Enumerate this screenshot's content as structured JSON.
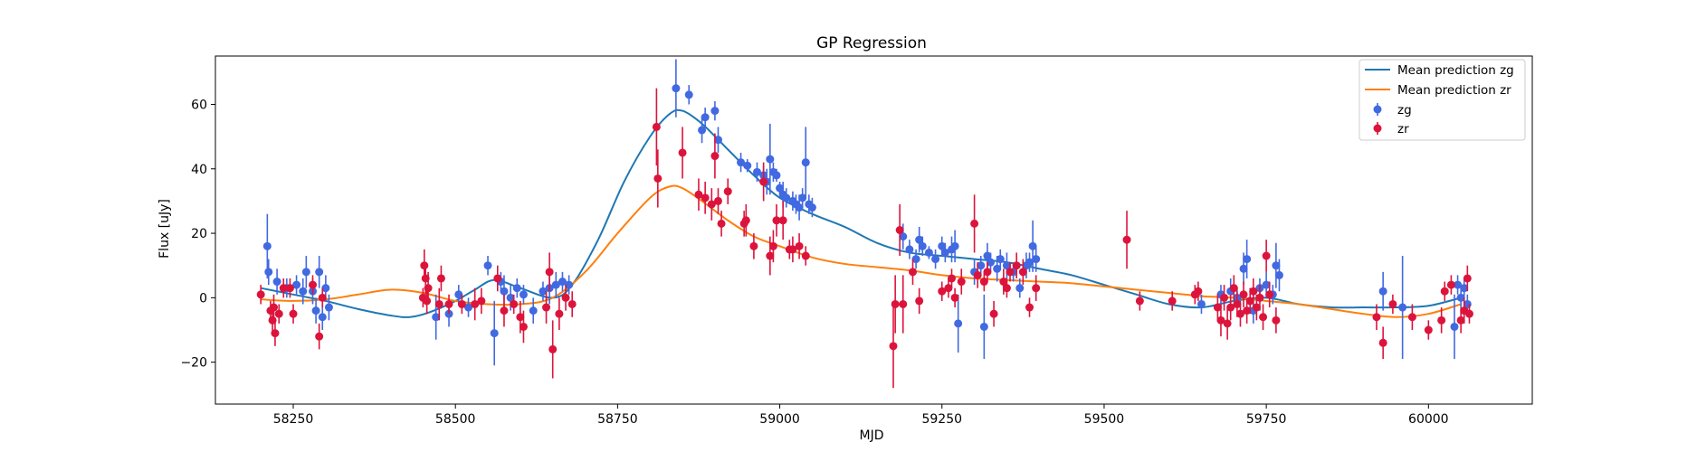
{
  "chart_data": {
    "type": "scatter",
    "title": "GP Regression",
    "xlabel": "MJD",
    "ylabel": "Flux [uJy]",
    "xlim": [
      58130,
      60160
    ],
    "ylim": [
      -33,
      75
    ],
    "xticks": [
      58250,
      58500,
      58750,
      59000,
      59250,
      59500,
      59750,
      60000
    ],
    "yticks": [
      -20,
      0,
      20,
      40,
      60
    ],
    "grid": false,
    "legend": {
      "placement": "top-right",
      "entries": [
        "Mean prediction zg",
        "Mean prediction zr",
        "zg",
        "zr"
      ]
    },
    "colors": {
      "zg_line": "#1f77b4",
      "zr_line": "#ff7f0e",
      "zg_points": "#4169e1",
      "zr_points": "#dc143c"
    },
    "series": [
      {
        "name": "Mean prediction zg",
        "kind": "line",
        "x": [
          58200,
          58250,
          58300,
          58350,
          58400,
          58430,
          58460,
          58500,
          58530,
          58560,
          58600,
          58650,
          58680,
          58720,
          58760,
          58800,
          58830,
          58850,
          58880,
          58920,
          58960,
          59000,
          59050,
          59100,
          59150,
          59200,
          59250,
          59300,
          59350,
          59400,
          59450,
          59500,
          59550,
          59600,
          59650,
          59700,
          59750,
          59800,
          59850,
          59900,
          59950,
          60000,
          60050
        ],
        "y": [
          3,
          1,
          -1,
          -3.5,
          -5.5,
          -6,
          -4.5,
          -1,
          2.5,
          5.5,
          3,
          0,
          4,
          18,
          36,
          50,
          57,
          58,
          54,
          46,
          38,
          31,
          26,
          22,
          17,
          14,
          13,
          12,
          11,
          9,
          7,
          4,
          1,
          -2,
          -3,
          -1,
          0,
          -2,
          -3,
          -3,
          -3,
          -2.5,
          0
        ]
      },
      {
        "name": "Mean prediction zr",
        "kind": "line",
        "x": [
          58200,
          58250,
          58300,
          58350,
          58400,
          58450,
          58500,
          58550,
          58600,
          58650,
          58700,
          58750,
          58800,
          58830,
          58850,
          58880,
          58920,
          58960,
          59000,
          59050,
          59100,
          59150,
          59200,
          59250,
          59300,
          59350,
          59400,
          59450,
          59500,
          59550,
          59600,
          59650,
          59700,
          59750,
          59800,
          59850,
          59900,
          59950,
          60000,
          60050
        ],
        "y": [
          -0.5,
          -1,
          -0.5,
          1,
          2.5,
          1.5,
          -1,
          -2,
          -2,
          0,
          8,
          20,
          31,
          34.5,
          34,
          30,
          24,
          19,
          16,
          12.5,
          10.5,
          9.5,
          8.5,
          7,
          6,
          5.5,
          5,
          4.5,
          3.5,
          2.5,
          1.5,
          0.5,
          0,
          -1,
          -2,
          -3.5,
          -5,
          -6,
          -5,
          -2
        ]
      },
      {
        "name": "zg",
        "kind": "errorbar",
        "points": [
          [
            58210,
            16,
            10
          ],
          [
            58212,
            8,
            4
          ],
          [
            58225,
            5,
            4
          ],
          [
            58240,
            3,
            3
          ],
          [
            58255,
            4,
            3
          ],
          [
            58265,
            2,
            4
          ],
          [
            58270,
            8,
            5
          ],
          [
            58280,
            2,
            4
          ],
          [
            58285,
            -4,
            4
          ],
          [
            58290,
            8,
            5
          ],
          [
            58295,
            -6,
            4
          ],
          [
            58300,
            3,
            4
          ],
          [
            58305,
            -3,
            4
          ],
          [
            58470,
            -6,
            7
          ],
          [
            58490,
            -5,
            4
          ],
          [
            58505,
            1,
            3
          ],
          [
            58520,
            -3,
            3
          ],
          [
            58550,
            10,
            3
          ],
          [
            58560,
            -11,
            10
          ],
          [
            58570,
            5,
            3
          ],
          [
            58575,
            2,
            5
          ],
          [
            58585,
            0,
            4
          ],
          [
            58595,
            3,
            3
          ],
          [
            58605,
            1,
            3
          ],
          [
            58620,
            -4,
            4
          ],
          [
            58635,
            2,
            3
          ],
          [
            58645,
            3,
            5
          ],
          [
            58655,
            4,
            4
          ],
          [
            58665,
            5,
            3
          ],
          [
            58675,
            4,
            3
          ],
          [
            58840,
            65,
            9
          ],
          [
            58860,
            63,
            3
          ],
          [
            58880,
            52,
            4
          ],
          [
            58885,
            56,
            3
          ],
          [
            58900,
            58,
            3
          ],
          [
            58905,
            49,
            4
          ],
          [
            58940,
            42,
            3
          ],
          [
            58950,
            41,
            2
          ],
          [
            58965,
            39,
            3
          ],
          [
            58975,
            38,
            3
          ],
          [
            58980,
            36,
            4
          ],
          [
            58985,
            43,
            11
          ],
          [
            58990,
            39,
            3
          ],
          [
            58995,
            38,
            2
          ],
          [
            59000,
            34,
            2
          ],
          [
            59005,
            32,
            4
          ],
          [
            59010,
            31,
            3
          ],
          [
            59020,
            30,
            3
          ],
          [
            59025,
            29,
            3
          ],
          [
            59030,
            28,
            4
          ],
          [
            59035,
            31,
            3
          ],
          [
            59040,
            42,
            11
          ],
          [
            59045,
            29,
            3
          ],
          [
            59050,
            28,
            3
          ],
          [
            59190,
            19,
            4
          ],
          [
            59200,
            15,
            3
          ],
          [
            59210,
            12,
            3
          ],
          [
            59215,
            18,
            4
          ],
          [
            59220,
            16,
            3
          ],
          [
            59230,
            14,
            2
          ],
          [
            59240,
            12,
            3
          ],
          [
            59250,
            16,
            3
          ],
          [
            59255,
            14,
            3
          ],
          [
            59265,
            15,
            4
          ],
          [
            59270,
            16,
            5
          ],
          [
            59275,
            -8,
            9
          ],
          [
            59300,
            8,
            4
          ],
          [
            59310,
            10,
            3
          ],
          [
            59315,
            -9,
            10
          ],
          [
            59320,
            13,
            4
          ],
          [
            59325,
            11,
            3
          ],
          [
            59335,
            9,
            4
          ],
          [
            59340,
            12,
            3
          ],
          [
            59350,
            10,
            4
          ],
          [
            59360,
            8,
            3
          ],
          [
            59370,
            3,
            3
          ],
          [
            59380,
            10,
            4
          ],
          [
            59385,
            11,
            3
          ],
          [
            59390,
            16,
            8
          ],
          [
            59395,
            12,
            4
          ],
          [
            59650,
            -2,
            3
          ],
          [
            59680,
            1,
            3
          ],
          [
            59695,
            2,
            4
          ],
          [
            59705,
            0,
            3
          ],
          [
            59715,
            9,
            5
          ],
          [
            59720,
            12,
            6
          ],
          [
            59730,
            -4,
            4
          ],
          [
            59740,
            3,
            3
          ],
          [
            59750,
            4,
            4
          ],
          [
            59760,
            1,
            3
          ],
          [
            59765,
            10,
            7
          ],
          [
            59770,
            7,
            5
          ],
          [
            59930,
            2,
            6
          ],
          [
            59960,
            -3,
            16
          ],
          [
            60040,
            -9,
            10
          ],
          [
            60045,
            4,
            3
          ],
          [
            60050,
            0,
            3
          ],
          [
            60055,
            3,
            3
          ],
          [
            60060,
            -2,
            3
          ]
        ]
      },
      {
        "name": "zr",
        "kind": "errorbar",
        "points": [
          [
            58200,
            1,
            3
          ],
          [
            58215,
            -4,
            3
          ],
          [
            58218,
            -7,
            4
          ],
          [
            58220,
            -3,
            4
          ],
          [
            58222,
            -11,
            4
          ],
          [
            58228,
            -5,
            3
          ],
          [
            58235,
            3,
            3
          ],
          [
            58245,
            3,
            3
          ],
          [
            58250,
            -5,
            3
          ],
          [
            58280,
            4,
            3
          ],
          [
            58290,
            -12,
            4
          ],
          [
            58295,
            0,
            3
          ],
          [
            58450,
            0,
            3
          ],
          [
            58452,
            10,
            5
          ],
          [
            58454,
            6,
            5
          ],
          [
            58456,
            -1,
            4
          ],
          [
            58458,
            3,
            5
          ],
          [
            58475,
            -2,
            5
          ],
          [
            58478,
            6,
            4
          ],
          [
            58490,
            -2,
            3
          ],
          [
            58510,
            -2,
            3
          ],
          [
            58530,
            -2,
            5
          ],
          [
            58540,
            -1,
            4
          ],
          [
            58565,
            6,
            4
          ],
          [
            58575,
            -4,
            5
          ],
          [
            58590,
            -2,
            3
          ],
          [
            58600,
            -6,
            5
          ],
          [
            58605,
            -9,
            5
          ],
          [
            58640,
            -3,
            5
          ],
          [
            58645,
            8,
            6
          ],
          [
            58650,
            -16,
            9
          ],
          [
            58660,
            -5,
            5
          ],
          [
            58670,
            0,
            4
          ],
          [
            58680,
            -2,
            4
          ],
          [
            58810,
            53,
            12
          ],
          [
            58812,
            37,
            9
          ],
          [
            58850,
            45,
            8
          ],
          [
            58875,
            32,
            5
          ],
          [
            58885,
            31,
            5
          ],
          [
            58895,
            29,
            5
          ],
          [
            58900,
            44,
            7
          ],
          [
            58905,
            30,
            4
          ],
          [
            58910,
            23,
            4
          ],
          [
            58920,
            33,
            4
          ],
          [
            58945,
            23,
            4
          ],
          [
            58948,
            24,
            5
          ],
          [
            58960,
            16,
            4
          ],
          [
            58975,
            36,
            6
          ],
          [
            58985,
            13,
            6
          ],
          [
            58990,
            16,
            5
          ],
          [
            58995,
            24,
            5
          ],
          [
            59005,
            24,
            6
          ],
          [
            59015,
            15,
            3
          ],
          [
            59020,
            15,
            4
          ],
          [
            59030,
            16,
            4
          ],
          [
            59040,
            13,
            3
          ],
          [
            59175,
            -15,
            13
          ],
          [
            59178,
            -2,
            9
          ],
          [
            59185,
            21,
            8
          ],
          [
            59190,
            -2,
            9
          ],
          [
            59205,
            8,
            4
          ],
          [
            59215,
            -1,
            4
          ],
          [
            59250,
            2,
            3
          ],
          [
            59260,
            3,
            3
          ],
          [
            59265,
            6,
            3
          ],
          [
            59270,
            0,
            3
          ],
          [
            59280,
            5,
            4
          ],
          [
            59300,
            23,
            9
          ],
          [
            59305,
            7,
            4
          ],
          [
            59315,
            5,
            3
          ],
          [
            59320,
            8,
            3
          ],
          [
            59330,
            -5,
            4
          ],
          [
            59345,
            5,
            4
          ],
          [
            59350,
            3,
            3
          ],
          [
            59355,
            8,
            3
          ],
          [
            59365,
            10,
            4
          ],
          [
            59375,
            8,
            4
          ],
          [
            59385,
            -3,
            3
          ],
          [
            59395,
            3,
            4
          ],
          [
            59535,
            18,
            9
          ],
          [
            59555,
            -1,
            3
          ],
          [
            59605,
            -1,
            3
          ],
          [
            59640,
            1,
            3
          ],
          [
            59645,
            2,
            3
          ],
          [
            59675,
            -3,
            4
          ],
          [
            59680,
            -7,
            5
          ],
          [
            59685,
            0,
            4
          ],
          [
            59690,
            -8,
            5
          ],
          [
            59695,
            -3,
            4
          ],
          [
            59700,
            3,
            4
          ],
          [
            59705,
            -2,
            4
          ],
          [
            59710,
            -5,
            4
          ],
          [
            59715,
            1,
            4
          ],
          [
            59720,
            -4,
            4
          ],
          [
            59725,
            -1,
            4
          ],
          [
            59730,
            2,
            4
          ],
          [
            59735,
            -3,
            4
          ],
          [
            59740,
            0,
            4
          ],
          [
            59745,
            -6,
            4
          ],
          [
            59750,
            13,
            5
          ],
          [
            59755,
            1,
            4
          ],
          [
            59765,
            -7,
            4
          ],
          [
            59920,
            -6,
            4
          ],
          [
            59930,
            -14,
            5
          ],
          [
            59945,
            -2,
            3
          ],
          [
            59975,
            -6,
            4
          ],
          [
            60000,
            -10,
            3
          ],
          [
            60020,
            -7,
            4
          ],
          [
            60025,
            2,
            3
          ],
          [
            60035,
            4,
            3
          ],
          [
            60050,
            -7,
            4
          ],
          [
            60055,
            -4,
            4
          ],
          [
            60060,
            6,
            4
          ],
          [
            60063,
            -5,
            3
          ]
        ]
      }
    ]
  }
}
